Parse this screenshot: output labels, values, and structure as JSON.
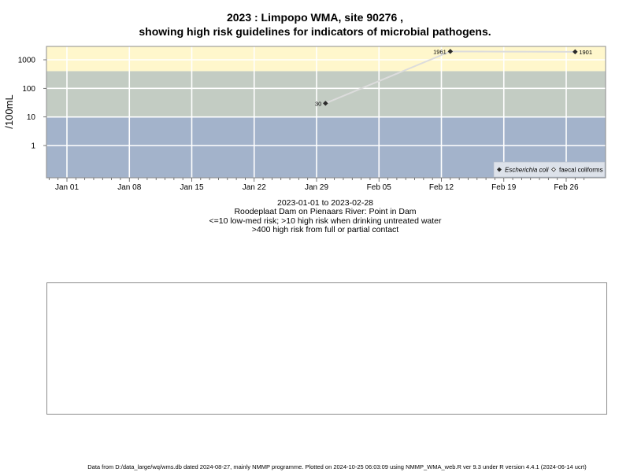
{
  "chart_data": {
    "type": "scatter",
    "title": "2023 : Limpopo WMA, site 90276 ,",
    "subtitle": "showing high risk guidelines for indicators of microbial pathogens.",
    "xlabel": "",
    "ylabel": "/100mL",
    "x_ticks": [
      "Jan 01",
      "Jan 08",
      "Jan 15",
      "Jan 22",
      "Jan 29",
      "Feb 05",
      "Feb 12",
      "Feb 19",
      "Feb 26"
    ],
    "y_ticks": [
      "1",
      "10",
      "100",
      "1000"
    ],
    "y_scale": "log",
    "grid": true,
    "legend_position": "bottom-right",
    "risk_bands": [
      {
        "name": "low-med risk",
        "to": 10,
        "color": "#a3b3cb"
      },
      {
        "name": "high risk when drinking untreated water",
        "from": 10,
        "to": 400,
        "color": "#c3ccc3"
      },
      {
        "name": "high risk from full or partial contact",
        "from": 400,
        "color": "#fff7cc"
      }
    ],
    "series": [
      {
        "name": "Escherichia coli",
        "marker": "filled-diamond",
        "color": "#2b2b2b",
        "line_color": "#dcdcdc",
        "points": [
          {
            "x": "2023-01-30",
            "y": 30,
            "label": "30"
          },
          {
            "x": "2023-02-13",
            "y": 1961,
            "label": "1961"
          },
          {
            "x": "2023-02-27",
            "y": 1901,
            "label": "1901"
          }
        ]
      },
      {
        "name": "faecal coliforms",
        "marker": "open-diamond",
        "color": "#2b2b2b",
        "points": []
      }
    ]
  },
  "captions": {
    "date_range": "2023-01-01 to 2023-02-28",
    "location": "Roodeplaat Dam on Pienaars River: Point in Dam",
    "guideline_1": "<=10 low-med risk; >10 high risk when drinking untreated water",
    "guideline_2": ">400 high risk from full or partial contact"
  },
  "footer": "Data from D:/data_large/wq/wms.db dated 2024-08-27, mainly NMMP programme. Plotted on 2024-10-25 06:03:09 using NMMP_WMA_web.R ver 9.3 under R version 4.4.1 (2024-06-14 ucrt)"
}
